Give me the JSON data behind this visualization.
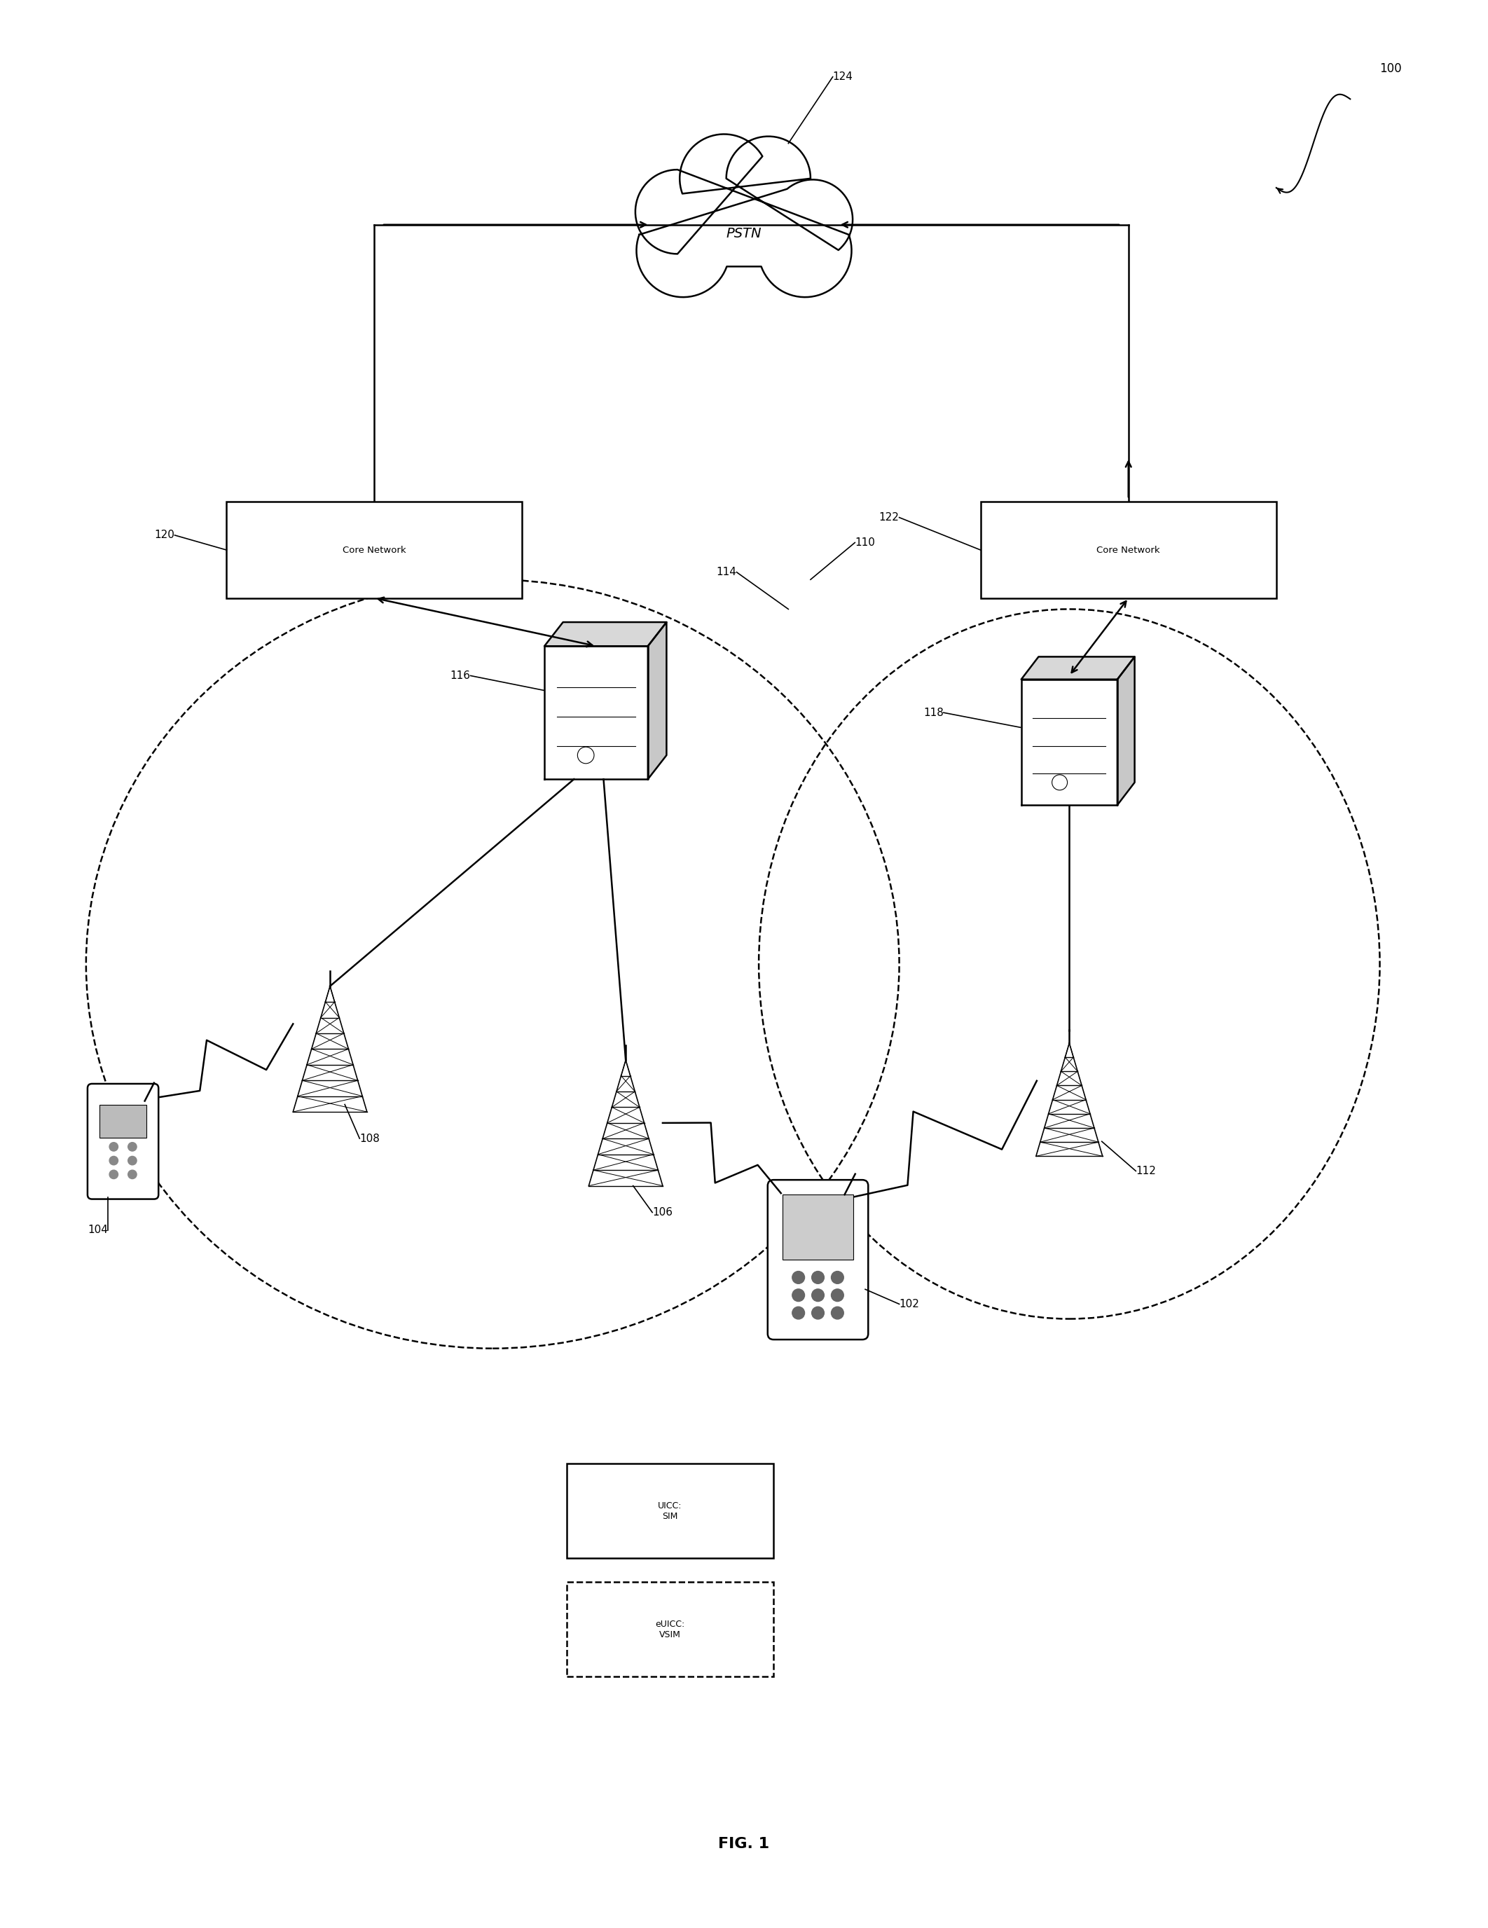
{
  "background_color": "#ffffff",
  "labels": {
    "pstn": "PSTN",
    "core_network_left": "Core Network",
    "core_network_right": "Core Network",
    "uicc_label": "UICC:\nSIM",
    "euicc_label": "eUICC:\nVSIM",
    "fig": "FIG. 1"
  },
  "numbers": {
    "n100": "100",
    "n102": "102",
    "n104": "104",
    "n106": "106",
    "n108": "108",
    "n110": "110",
    "n112": "112",
    "n114": "114",
    "n116": "116",
    "n118": "118",
    "n120": "120",
    "n122": "122",
    "n124": "124"
  }
}
